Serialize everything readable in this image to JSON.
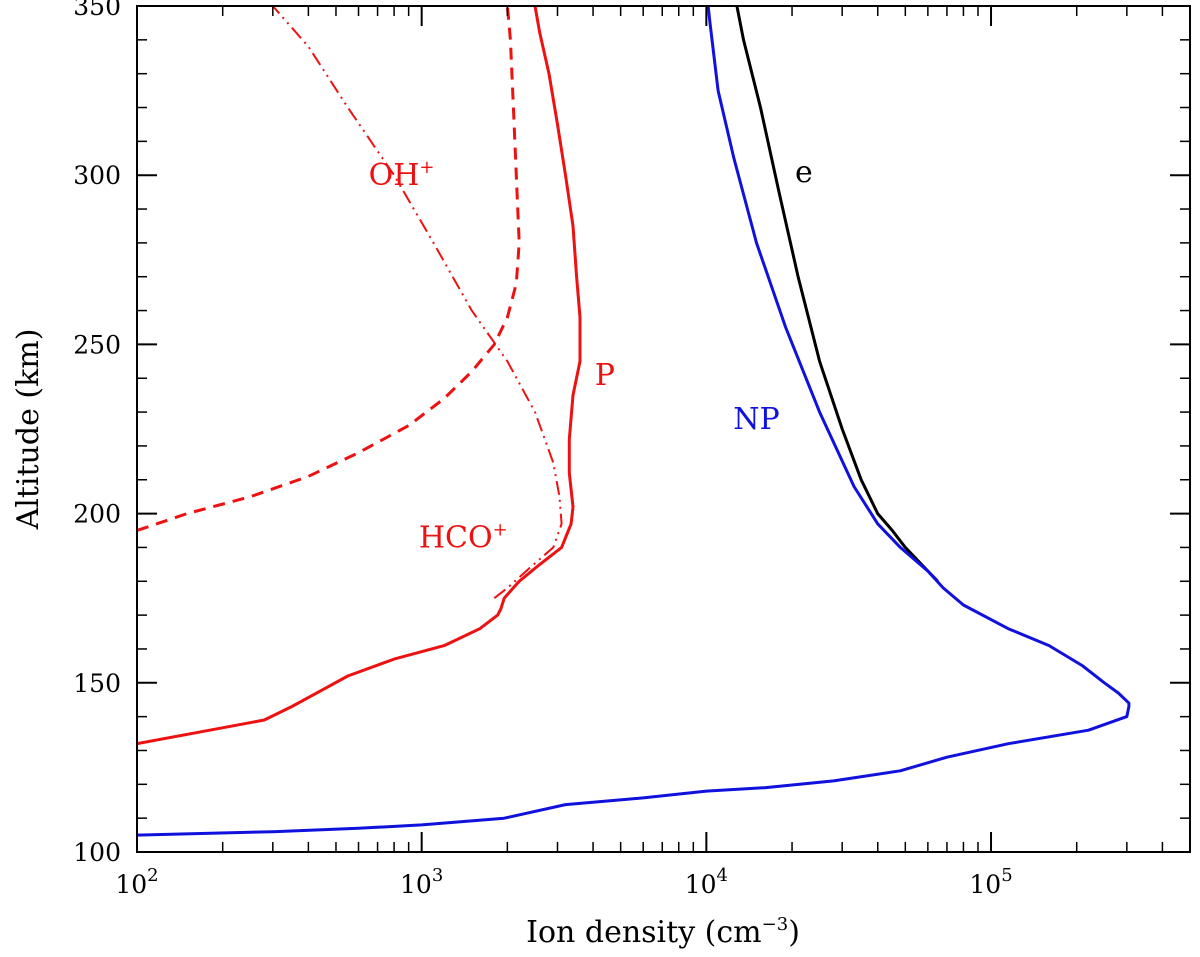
{
  "chart_data": {
    "type": "line",
    "xlabel": "Ion density (cm",
    "xlabel_sup": "−3",
    "xlabel_close": ")",
    "ylabel": "Altitude (km)",
    "xscale": "log",
    "xlim": [
      100,
      500000
    ],
    "ylim": [
      100,
      350
    ],
    "grid": false,
    "x_ticks": [
      {
        "value": 100,
        "base": "10",
        "exp": "2"
      },
      {
        "value": 1000,
        "base": "10",
        "exp": "3"
      },
      {
        "value": 10000,
        "base": "10",
        "exp": "4"
      },
      {
        "value": 100000,
        "base": "10",
        "exp": "5"
      }
    ],
    "y_ticks": [
      100,
      150,
      200,
      250,
      300,
      350
    ],
    "y_tick_labels": [
      "100",
      "150",
      "200",
      "250",
      "300",
      "350"
    ],
    "series": [
      {
        "color": "#ee1111",
        "dash": "dashed",
        "x": [
          100,
          150,
          250,
          400,
          600,
          900,
          1200,
          1500,
          1800,
          2000,
          2150,
          2200,
          2150,
          2100,
          2050,
          2000
        ],
        "y": [
          195,
          200,
          205,
          211,
          218,
          226,
          234,
          242,
          250,
          258,
          268,
          280,
          300,
          320,
          340,
          350
        ]
      },
      {
        "color": "#ee1111",
        "dash": "dashdotdot",
        "x": [
          1800,
          2000,
          2400,
          2900,
          3100,
          3050,
          2900,
          2500,
          2000,
          1500,
          1100,
          800,
          550,
          400,
          300
        ],
        "y": [
          175,
          178,
          184,
          190,
          197,
          205,
          215,
          230,
          245,
          260,
          280,
          300,
          320,
          338,
          350
        ]
      },
      {
        "color": "#ee1111",
        "dash": "solid",
        "x": [
          100,
          180,
          280,
          350,
          450,
          550,
          800,
          1200,
          1600,
          1850,
          1900,
          1950,
          2200,
          2600,
          3100,
          3350,
          3400,
          3300,
          3300,
          3400,
          3600,
          3600,
          3500,
          3400,
          3200,
          3000,
          2800,
          2600,
          2500
        ],
        "y": [
          132,
          136,
          139,
          143,
          148,
          152,
          157,
          161,
          166,
          170,
          172,
          175,
          180,
          185,
          190,
          197,
          202,
          212,
          222,
          235,
          245,
          258,
          270,
          285,
          300,
          315,
          330,
          342,
          350
        ]
      },
      {
        "name": "e",
        "color": "#000000",
        "dash": "solid",
        "x": [
          65000,
          57000,
          50000,
          45000,
          40000,
          35000,
          30000,
          25000,
          21000,
          18000,
          15500,
          13500,
          12800,
          12200
        ],
        "y": [
          180,
          185,
          190,
          195,
          200,
          210,
          225,
          245,
          270,
          295,
          320,
          340,
          350,
          355
        ]
      },
      {
        "name": "NP",
        "color": "#1111dd",
        "dash": "solid",
        "x": [
          100,
          300,
          600,
          1000,
          1950,
          3200,
          6000,
          10000,
          16000,
          28000,
          48000,
          70000,
          115000,
          220000,
          300000,
          305000,
          305000,
          280000,
          250000,
          210000,
          160000,
          115000,
          80000,
          68000,
          60000,
          48000,
          40000,
          33000,
          25000,
          19000,
          15000,
          12500,
          11000,
          10300,
          10000
        ],
        "y": [
          105,
          106,
          107,
          108,
          110,
          114,
          116,
          118,
          119,
          121,
          124,
          128,
          132,
          136,
          140,
          143,
          144,
          147,
          150,
          155,
          161,
          166,
          173,
          178,
          183,
          190,
          197,
          208,
          230,
          255,
          280,
          305,
          325,
          345,
          355
        ]
      }
    ],
    "annotations": [
      {
        "text": "OH",
        "sup": "+",
        "color": "#ee1111",
        "x": 850,
        "y": 300
      },
      {
        "text": "HCO",
        "sup": "+",
        "color": "#ee1111",
        "x": 1400,
        "y": 193
      },
      {
        "text": "P",
        "color": "#ee1111",
        "x": 4400,
        "y": 241
      },
      {
        "text": "NP",
        "color": "#1111dd",
        "x": 15000,
        "y": 228
      },
      {
        "text": "e",
        "color": "#000000",
        "x": 22000,
        "y": 301
      }
    ]
  }
}
